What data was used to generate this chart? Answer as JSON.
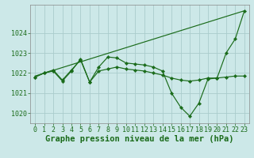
{
  "background_color": "#cce8e8",
  "grid_color": "#aacccc",
  "line_color": "#1a6b1a",
  "xlabel": "Graphe pression niveau de la mer (hPa)",
  "xlabel_fontsize": 7.5,
  "tick_fontsize": 6,
  "xlim": [
    -0.5,
    23.5
  ],
  "ylim": [
    1019.5,
    1025.4
  ],
  "yticks": [
    1020,
    1021,
    1022,
    1023,
    1024
  ],
  "xticks": [
    0,
    1,
    2,
    3,
    4,
    5,
    6,
    7,
    8,
    9,
    10,
    11,
    12,
    13,
    14,
    15,
    16,
    17,
    18,
    19,
    20,
    21,
    22,
    23
  ],
  "line1_x": [
    0,
    23
  ],
  "line1_y": [
    1021.85,
    1025.1
  ],
  "line2_x": [
    0,
    1,
    2,
    3,
    4,
    5,
    6,
    7,
    8,
    9,
    10,
    11,
    12,
    13,
    14,
    15,
    16,
    17,
    18,
    19,
    20,
    21,
    22,
    23
  ],
  "line2_y": [
    1021.8,
    1022.0,
    1022.1,
    1021.6,
    1022.1,
    1022.7,
    1021.55,
    1022.3,
    1022.8,
    1022.75,
    1022.5,
    1022.45,
    1022.4,
    1022.3,
    1022.1,
    1021.0,
    1020.3,
    1019.85,
    1020.5,
    1021.7,
    1021.75,
    1023.0,
    1023.7,
    1025.1
  ],
  "line3_x": [
    0,
    1,
    2,
    3,
    4,
    5,
    6,
    7,
    8,
    9,
    10,
    11,
    12,
    13,
    14,
    15,
    16,
    17,
    18,
    19,
    20,
    21,
    22,
    23
  ],
  "line3_y": [
    1021.8,
    1022.0,
    1022.15,
    1021.65,
    1022.15,
    1022.65,
    1021.55,
    1022.1,
    1022.2,
    1022.3,
    1022.2,
    1022.15,
    1022.1,
    1022.0,
    1021.9,
    1021.75,
    1021.65,
    1021.6,
    1021.65,
    1021.75,
    1021.75,
    1021.8,
    1021.85,
    1021.85
  ]
}
